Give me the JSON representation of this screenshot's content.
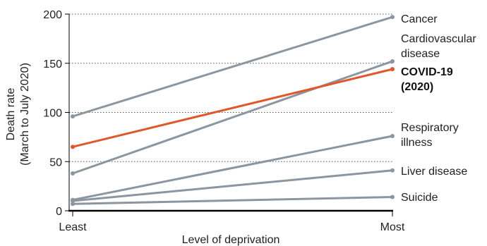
{
  "chart_data": {
    "type": "line",
    "categories": [
      "Least",
      "Most"
    ],
    "xlabel": "Level of deprivation",
    "ylabel": [
      "Death rate",
      "(March to July 2020)"
    ],
    "ylim": [
      0,
      200
    ],
    "yticks": [
      0,
      50,
      100,
      150,
      200
    ],
    "grid": "horizontal dotted",
    "series": [
      {
        "name": "Cancer",
        "label_lines": [
          "Cancer"
        ],
        "values": [
          96,
          197
        ],
        "color": "#8c96a0",
        "highlight": false
      },
      {
        "name": "Cardiovascular disease",
        "label_lines": [
          "Cardiovascular",
          "disease"
        ],
        "values": [
          38,
          152
        ],
        "color": "#8c96a0",
        "highlight": false
      },
      {
        "name": "COVID-19 (2020)",
        "label_lines": [
          "COVID-19",
          "(2020)"
        ],
        "values": [
          65,
          144
        ],
        "color": "#e0572a",
        "highlight": true
      },
      {
        "name": "Respiratory illness",
        "label_lines": [
          "Respiratory",
          "illness"
        ],
        "values": [
          11,
          76
        ],
        "color": "#8c96a0",
        "highlight": false
      },
      {
        "name": "Liver disease",
        "label_lines": [
          "Liver disease"
        ],
        "values": [
          10,
          41
        ],
        "color": "#8c96a0",
        "highlight": false
      },
      {
        "name": "Suicide",
        "label_lines": [
          "Suicide"
        ],
        "values": [
          7,
          14
        ],
        "color": "#8c96a0",
        "highlight": false
      }
    ]
  }
}
